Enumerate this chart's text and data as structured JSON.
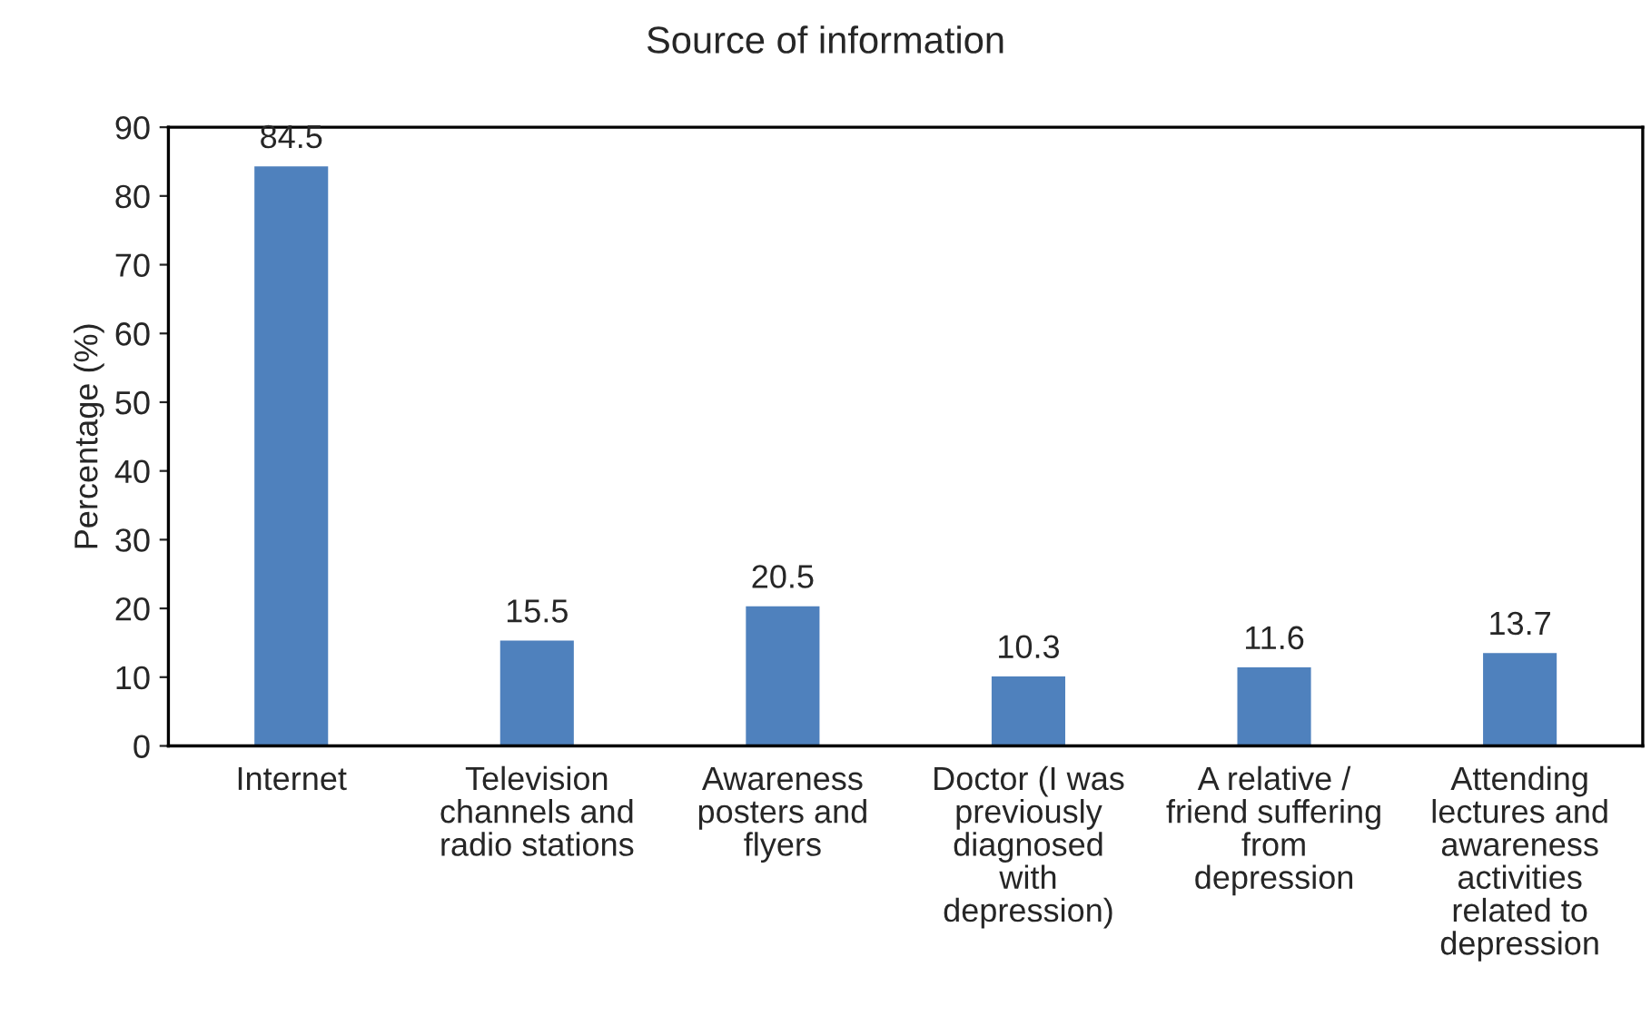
{
  "chart_data": {
    "type": "bar",
    "title": "Source of information",
    "ylabel": "Percentage (%)",
    "categories": [
      "Internet",
      "Television\nchannels and\nradio stations",
      "Awareness\nposters and\nflyers",
      "Doctor (I was\npreviously\ndiagnosed\nwith\ndepression)",
      "A relative /\nfriend suffering\nfrom\ndepression",
      "Attending\nlectures and\nawareness\nactivities\nrelated to\ndepression"
    ],
    "values": [
      84.5,
      15.5,
      20.5,
      10.3,
      11.6,
      13.7
    ],
    "color": "#4f81bd",
    "ylim": [
      0,
      90
    ],
    "yticks": [
      0,
      10,
      20,
      30,
      40,
      50,
      60,
      70,
      80,
      90
    ],
    "data_labels": true,
    "grid": false,
    "legend": false
  }
}
